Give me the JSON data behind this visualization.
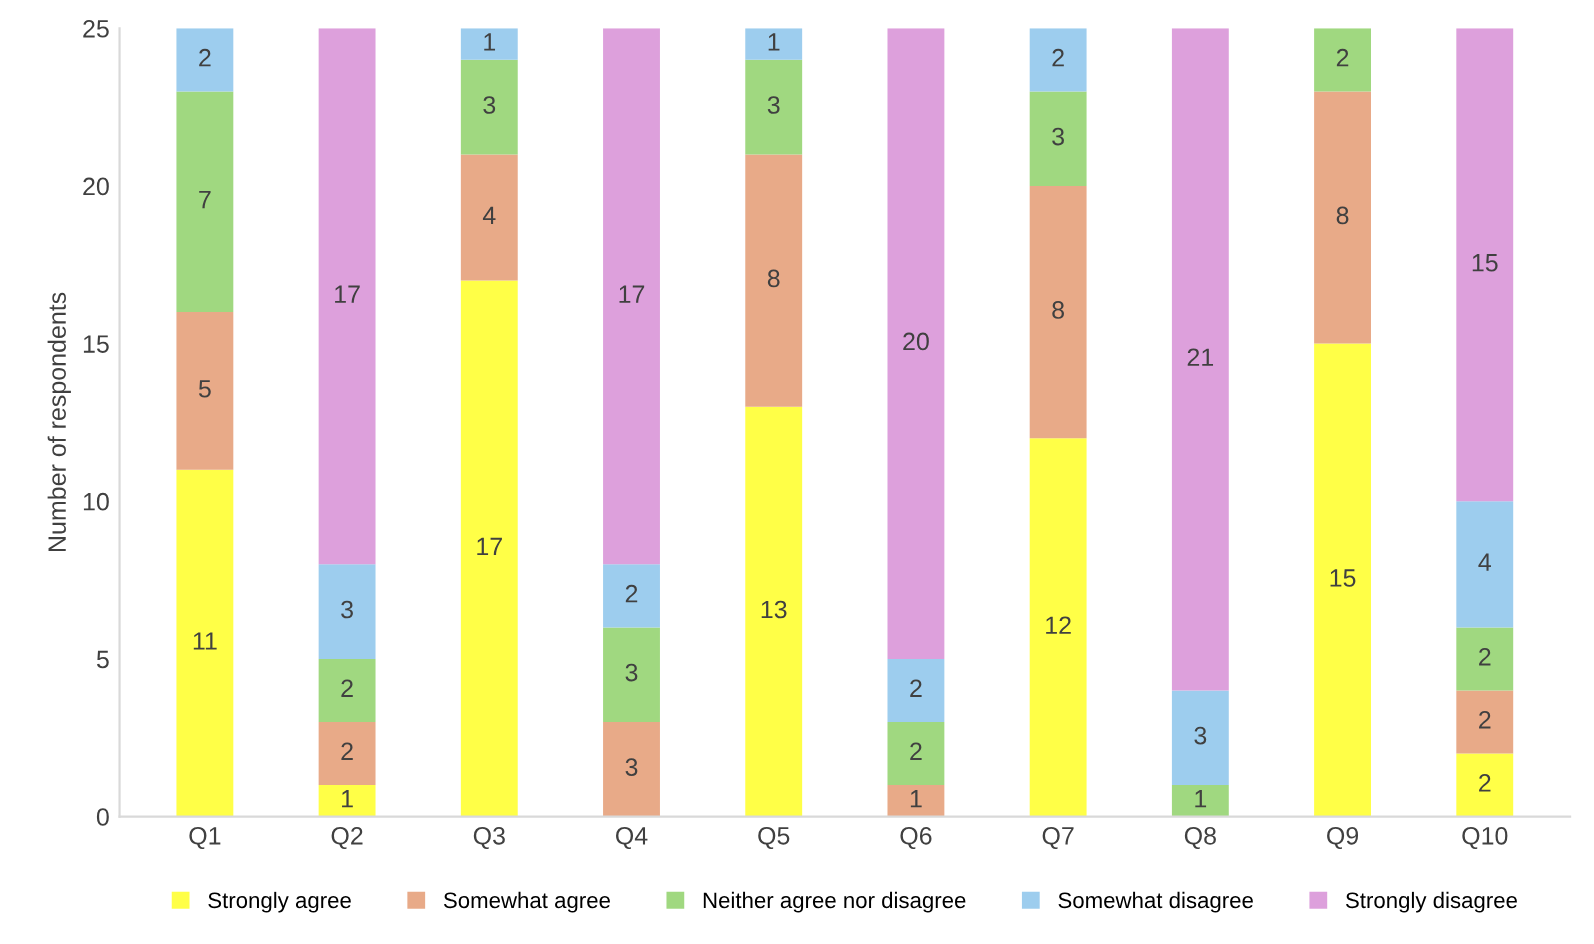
{
  "chart_data": {
    "type": "bar",
    "stacked": true,
    "ylabel": "Number of respondents",
    "categories": [
      "Q1",
      "Q2",
      "Q3",
      "Q4",
      "Q5",
      "Q6",
      "Q7",
      "Q8",
      "Q9",
      "Q10"
    ],
    "series": [
      {
        "name": "Strongly agree",
        "color": "#ffff47",
        "values": [
          11,
          1,
          17,
          0,
          13,
          0,
          12,
          0,
          15,
          2
        ],
        "value_labels": [
          "11",
          "1",
          "17",
          null,
          "13",
          null,
          "12",
          null,
          "15",
          "2"
        ]
      },
      {
        "name": "Somewhat agree",
        "color": "#e8aa88",
        "values": [
          5,
          2,
          4,
          3,
          8,
          1,
          8,
          0,
          8,
          2
        ],
        "value_labels": [
          "5",
          "2",
          "4",
          "3",
          "8",
          "1",
          "8",
          null,
          "8",
          "2"
        ]
      },
      {
        "name": "Neither agree nor disagree",
        "color": "#a0d880",
        "values": [
          7,
          2,
          3,
          3,
          3,
          2,
          3,
          1,
          2,
          2
        ],
        "value_labels": [
          "7",
          "2",
          "3",
          "3",
          "3",
          "2",
          "3",
          "1",
          "2",
          "2"
        ]
      },
      {
        "name": "Somewhat disagree",
        "color": "#9dcdee",
        "values": [
          2,
          3,
          1,
          2,
          1,
          2,
          2,
          3,
          0,
          4
        ],
        "value_labels": [
          "2",
          "3",
          "1",
          "2",
          "1",
          "2",
          "2",
          "3",
          null,
          "4"
        ]
      },
      {
        "name": "Strongly disagree",
        "color": "#dda0dc",
        "values": [
          0,
          17,
          0,
          17,
          0,
          20,
          0,
          21,
          0,
          15
        ],
        "value_labels": [
          null,
          "17",
          null,
          "17",
          null,
          "20",
          null,
          "21",
          null,
          "15"
        ]
      }
    ],
    "ylim": [
      0,
      25
    ],
    "yticks": [
      0,
      5,
      10,
      15,
      20,
      25
    ],
    "grid": false,
    "legend": "bottom"
  }
}
